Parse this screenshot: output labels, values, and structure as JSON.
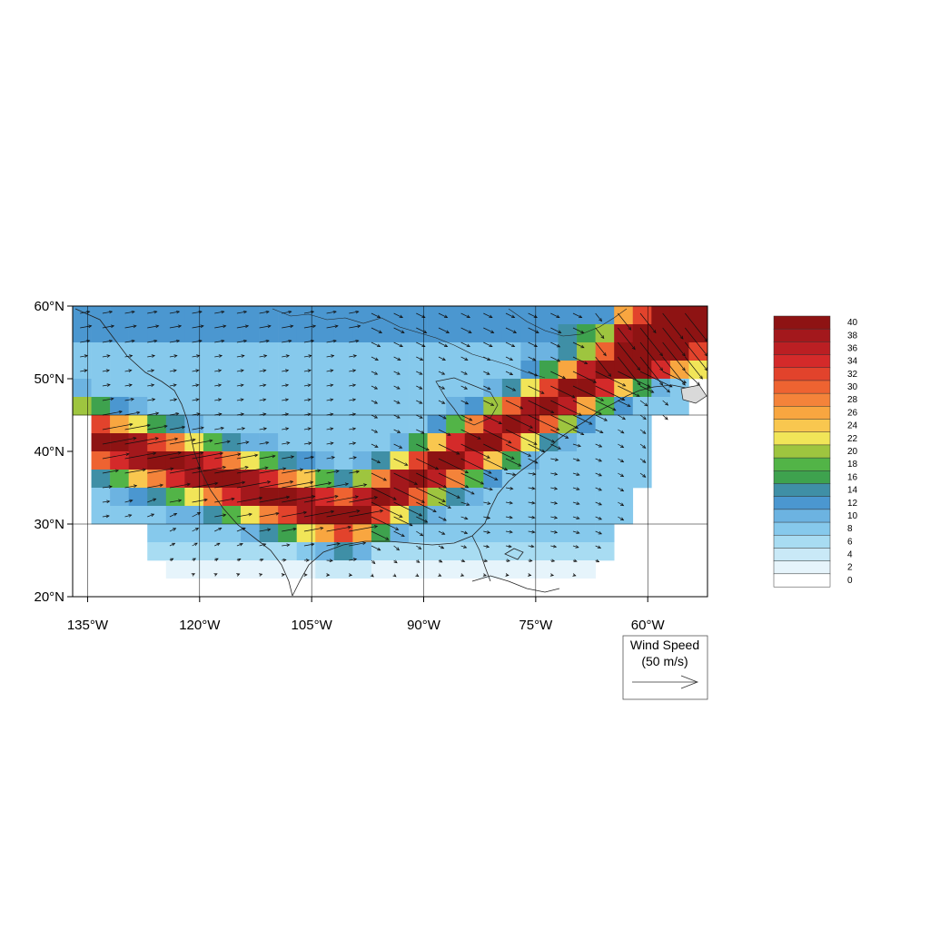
{
  "map": {
    "lon_range": [
      -137,
      -52
    ],
    "lat_range": [
      20,
      60
    ],
    "lon_ticks": [
      {
        "value": -135,
        "label": "135°W"
      },
      {
        "value": -120,
        "label": "120°W"
      },
      {
        "value": -105,
        "label": "105°W"
      },
      {
        "value": -90,
        "label": "90°W"
      },
      {
        "value": -75,
        "label": "75°W"
      },
      {
        "value": -60,
        "label": "60°W"
      }
    ],
    "lat_ticks": [
      {
        "value": 20,
        "label": "20°N"
      },
      {
        "value": 30,
        "label": "30°N"
      },
      {
        "value": 40,
        "label": "40°N"
      },
      {
        "value": 50,
        "label": "50°N"
      },
      {
        "value": 60,
        "label": "60°N"
      }
    ],
    "grid_lines": true,
    "field": "wind speed (m/s) shaded with wind vectors",
    "jet_stream_band": "high speeds from ~135°W,42°N through the southern US (~100°W,31°N) rising northeast to ~55°W,58°N"
  },
  "colorbar": {
    "levels": [
      0,
      2,
      4,
      6,
      8,
      10,
      12,
      14,
      16,
      18,
      20,
      22,
      24,
      26,
      28,
      30,
      32,
      34,
      36,
      38,
      40
    ],
    "colors": [
      "#ffffff",
      "#e6f4fb",
      "#c9e9f7",
      "#a8dcf2",
      "#86c9ec",
      "#6cb3e1",
      "#4b97d0",
      "#3f8fa6",
      "#3ea24e",
      "#52b447",
      "#9ec53f",
      "#f1e558",
      "#f9c74f",
      "#f8a640",
      "#f4833a",
      "#ee6331",
      "#e2432c",
      "#d42a2a",
      "#bb1f23",
      "#a3181c",
      "#8e1313"
    ],
    "placement": "right"
  },
  "reference_vector": {
    "title": "Wind Speed",
    "units": "(50 m/s)",
    "magnitude": 50
  }
}
